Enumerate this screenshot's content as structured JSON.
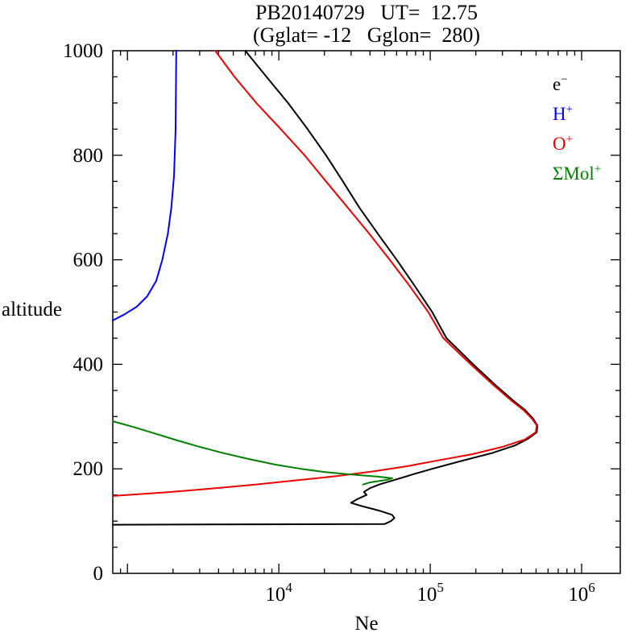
{
  "title": {
    "line1": "PB20140729   UT=  12.75",
    "line2": "(Gglat= -12   Gglon=  280)"
  },
  "chart_data": {
    "type": "line",
    "title": "PB20140729 UT= 12.75",
    "subtitle": "(Gglat= -12 Gglon= 280)",
    "xlabel": "Ne",
    "ylabel": "altitude",
    "xscale": "log",
    "xlim": [
      800,
      1800000
    ],
    "ylim": [
      0,
      1000
    ],
    "grid": false,
    "legend_position": "top-right",
    "x_labeled_ticks": [
      {
        "value": 10000,
        "base": "10",
        "exp": "4"
      },
      {
        "value": 100000,
        "base": "10",
        "exp": "5"
      },
      {
        "value": 1000000,
        "base": "10",
        "exp": "6"
      }
    ],
    "y_major_ticks": [
      0,
      200,
      400,
      600,
      800,
      1000
    ],
    "y_minor_step": 50,
    "legend": [
      {
        "series": "e-",
        "base": "e",
        "sup": "−",
        "color": "#000000"
      },
      {
        "series": "H+",
        "base": "H",
        "sup": "+",
        "color": "#0000ff"
      },
      {
        "series": "O+",
        "base": "O",
        "sup": "+",
        "color": "#ee0000"
      },
      {
        "series": "Mol+",
        "base": "ΣMol",
        "sup": "+",
        "color": "#008000"
      }
    ],
    "series": [
      {
        "name": "e-",
        "color": "#000000",
        "points": [
          [
            93,
            800
          ],
          [
            94.5,
            50000
          ],
          [
            100,
            55000
          ],
          [
            106,
            58000
          ],
          [
            112,
            56000
          ],
          [
            120,
            46000
          ],
          [
            128,
            36000
          ],
          [
            135,
            30000
          ],
          [
            142,
            33000
          ],
          [
            150,
            38000
          ],
          [
            156,
            36500
          ],
          [
            163,
            40000
          ],
          [
            170,
            46000
          ],
          [
            180,
            60000
          ],
          [
            190,
            78000
          ],
          [
            200,
            103000
          ],
          [
            215,
            160000
          ],
          [
            230,
            255000
          ],
          [
            245,
            365000
          ],
          [
            258,
            445000
          ],
          [
            270,
            505000
          ],
          [
            283,
            510000
          ],
          [
            296,
            478000
          ],
          [
            312,
            425000
          ],
          [
            330,
            355000
          ],
          [
            360,
            270000
          ],
          [
            400,
            192000
          ],
          [
            450,
            128000
          ],
          [
            500,
            103000
          ],
          [
            550,
            79000
          ],
          [
            600,
            60000
          ],
          [
            650,
            45000
          ],
          [
            700,
            34000
          ],
          [
            750,
            26500
          ],
          [
            800,
            20500
          ],
          [
            850,
            15500
          ],
          [
            900,
            11500
          ],
          [
            950,
            8300
          ],
          [
            1000,
            6000
          ]
        ]
      },
      {
        "name": "H+",
        "color": "#0000ff",
        "points": [
          [
            484,
            800
          ],
          [
            495,
            950
          ],
          [
            510,
            1150
          ],
          [
            530,
            1350
          ],
          [
            560,
            1550
          ],
          [
            600,
            1700
          ],
          [
            650,
            1850
          ],
          [
            700,
            1950
          ],
          [
            760,
            2030
          ],
          [
            850,
            2080
          ],
          [
            1000,
            2100
          ]
        ]
      },
      {
        "name": "O+",
        "color": "#ee0000",
        "points": [
          [
            148,
            800
          ],
          [
            155,
            1800
          ],
          [
            162,
            3500
          ],
          [
            170,
            7000
          ],
          [
            178,
            13000
          ],
          [
            186,
            24000
          ],
          [
            195,
            42000
          ],
          [
            205,
            70000
          ],
          [
            216,
            112000
          ],
          [
            228,
            190000
          ],
          [
            242,
            300000
          ],
          [
            256,
            420000
          ],
          [
            270,
            498000
          ],
          [
            283,
            505000
          ],
          [
            296,
            470000
          ],
          [
            312,
            415000
          ],
          [
            330,
            345000
          ],
          [
            360,
            262000
          ],
          [
            400,
            185000
          ],
          [
            450,
            122000
          ],
          [
            500,
            97000
          ],
          [
            550,
            73000
          ],
          [
            600,
            54000
          ],
          [
            650,
            39500
          ],
          [
            700,
            28500
          ],
          [
            750,
            20500
          ],
          [
            800,
            14800
          ],
          [
            850,
            10300
          ],
          [
            900,
            7100
          ],
          [
            950,
            5100
          ],
          [
            1000,
            3800
          ]
        ]
      },
      {
        "name": "Mol+",
        "color": "#008000",
        "points": [
          [
            291,
            800
          ],
          [
            280,
            1100
          ],
          [
            268,
            1500
          ],
          [
            255,
            2100
          ],
          [
            242,
            3000
          ],
          [
            230,
            4300
          ],
          [
            218,
            6500
          ],
          [
            208,
            9500
          ],
          [
            200,
            14000
          ],
          [
            194,
            20000
          ],
          [
            189,
            30000
          ],
          [
            185,
            45000
          ],
          [
            182,
            56000
          ],
          [
            179,
            52000
          ],
          [
            174,
            40000
          ],
          [
            170,
            36000
          ]
        ]
      }
    ]
  }
}
